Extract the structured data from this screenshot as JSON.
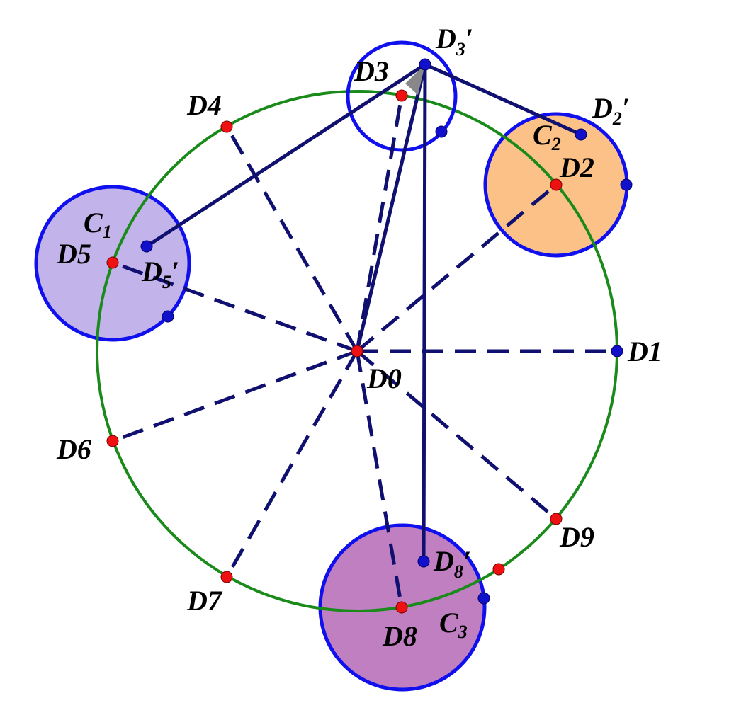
{
  "colors": {
    "main_circle": "#1a8a1a",
    "blue_circle": "#1010ee",
    "segment": "#101070",
    "red_point": "#ee1111",
    "blue_point": "#1111cc",
    "fill_c1": "#c2b3ea",
    "fill_c2": "#fbc187",
    "fill_c3": "#bf7fc0",
    "angle_mark": "#888888"
  },
  "labels": {
    "D0": "D0",
    "D1": "D1",
    "D2": "D2",
    "D3": "D3",
    "D4": "D4",
    "D5": "D5",
    "D6": "D6",
    "D7": "D7",
    "D8": "D8",
    "D9": "D9",
    "D2p_main": "D",
    "D2p_sub": "2",
    "D2p_prime": "′",
    "D3p_main": "D",
    "D3p_sub": "3",
    "D3p_prime": "′",
    "D5p_main": "D",
    "D5p_sub": "5",
    "D5p_prime": "′",
    "D8p_main": "D",
    "D8p_sub": "8",
    "D8p_prime": "′",
    "C1_main": "C",
    "C1_sub": "1",
    "C2_main": "C",
    "C2_sub": "2",
    "C3_main": "C",
    "C3_sub": "3"
  }
}
